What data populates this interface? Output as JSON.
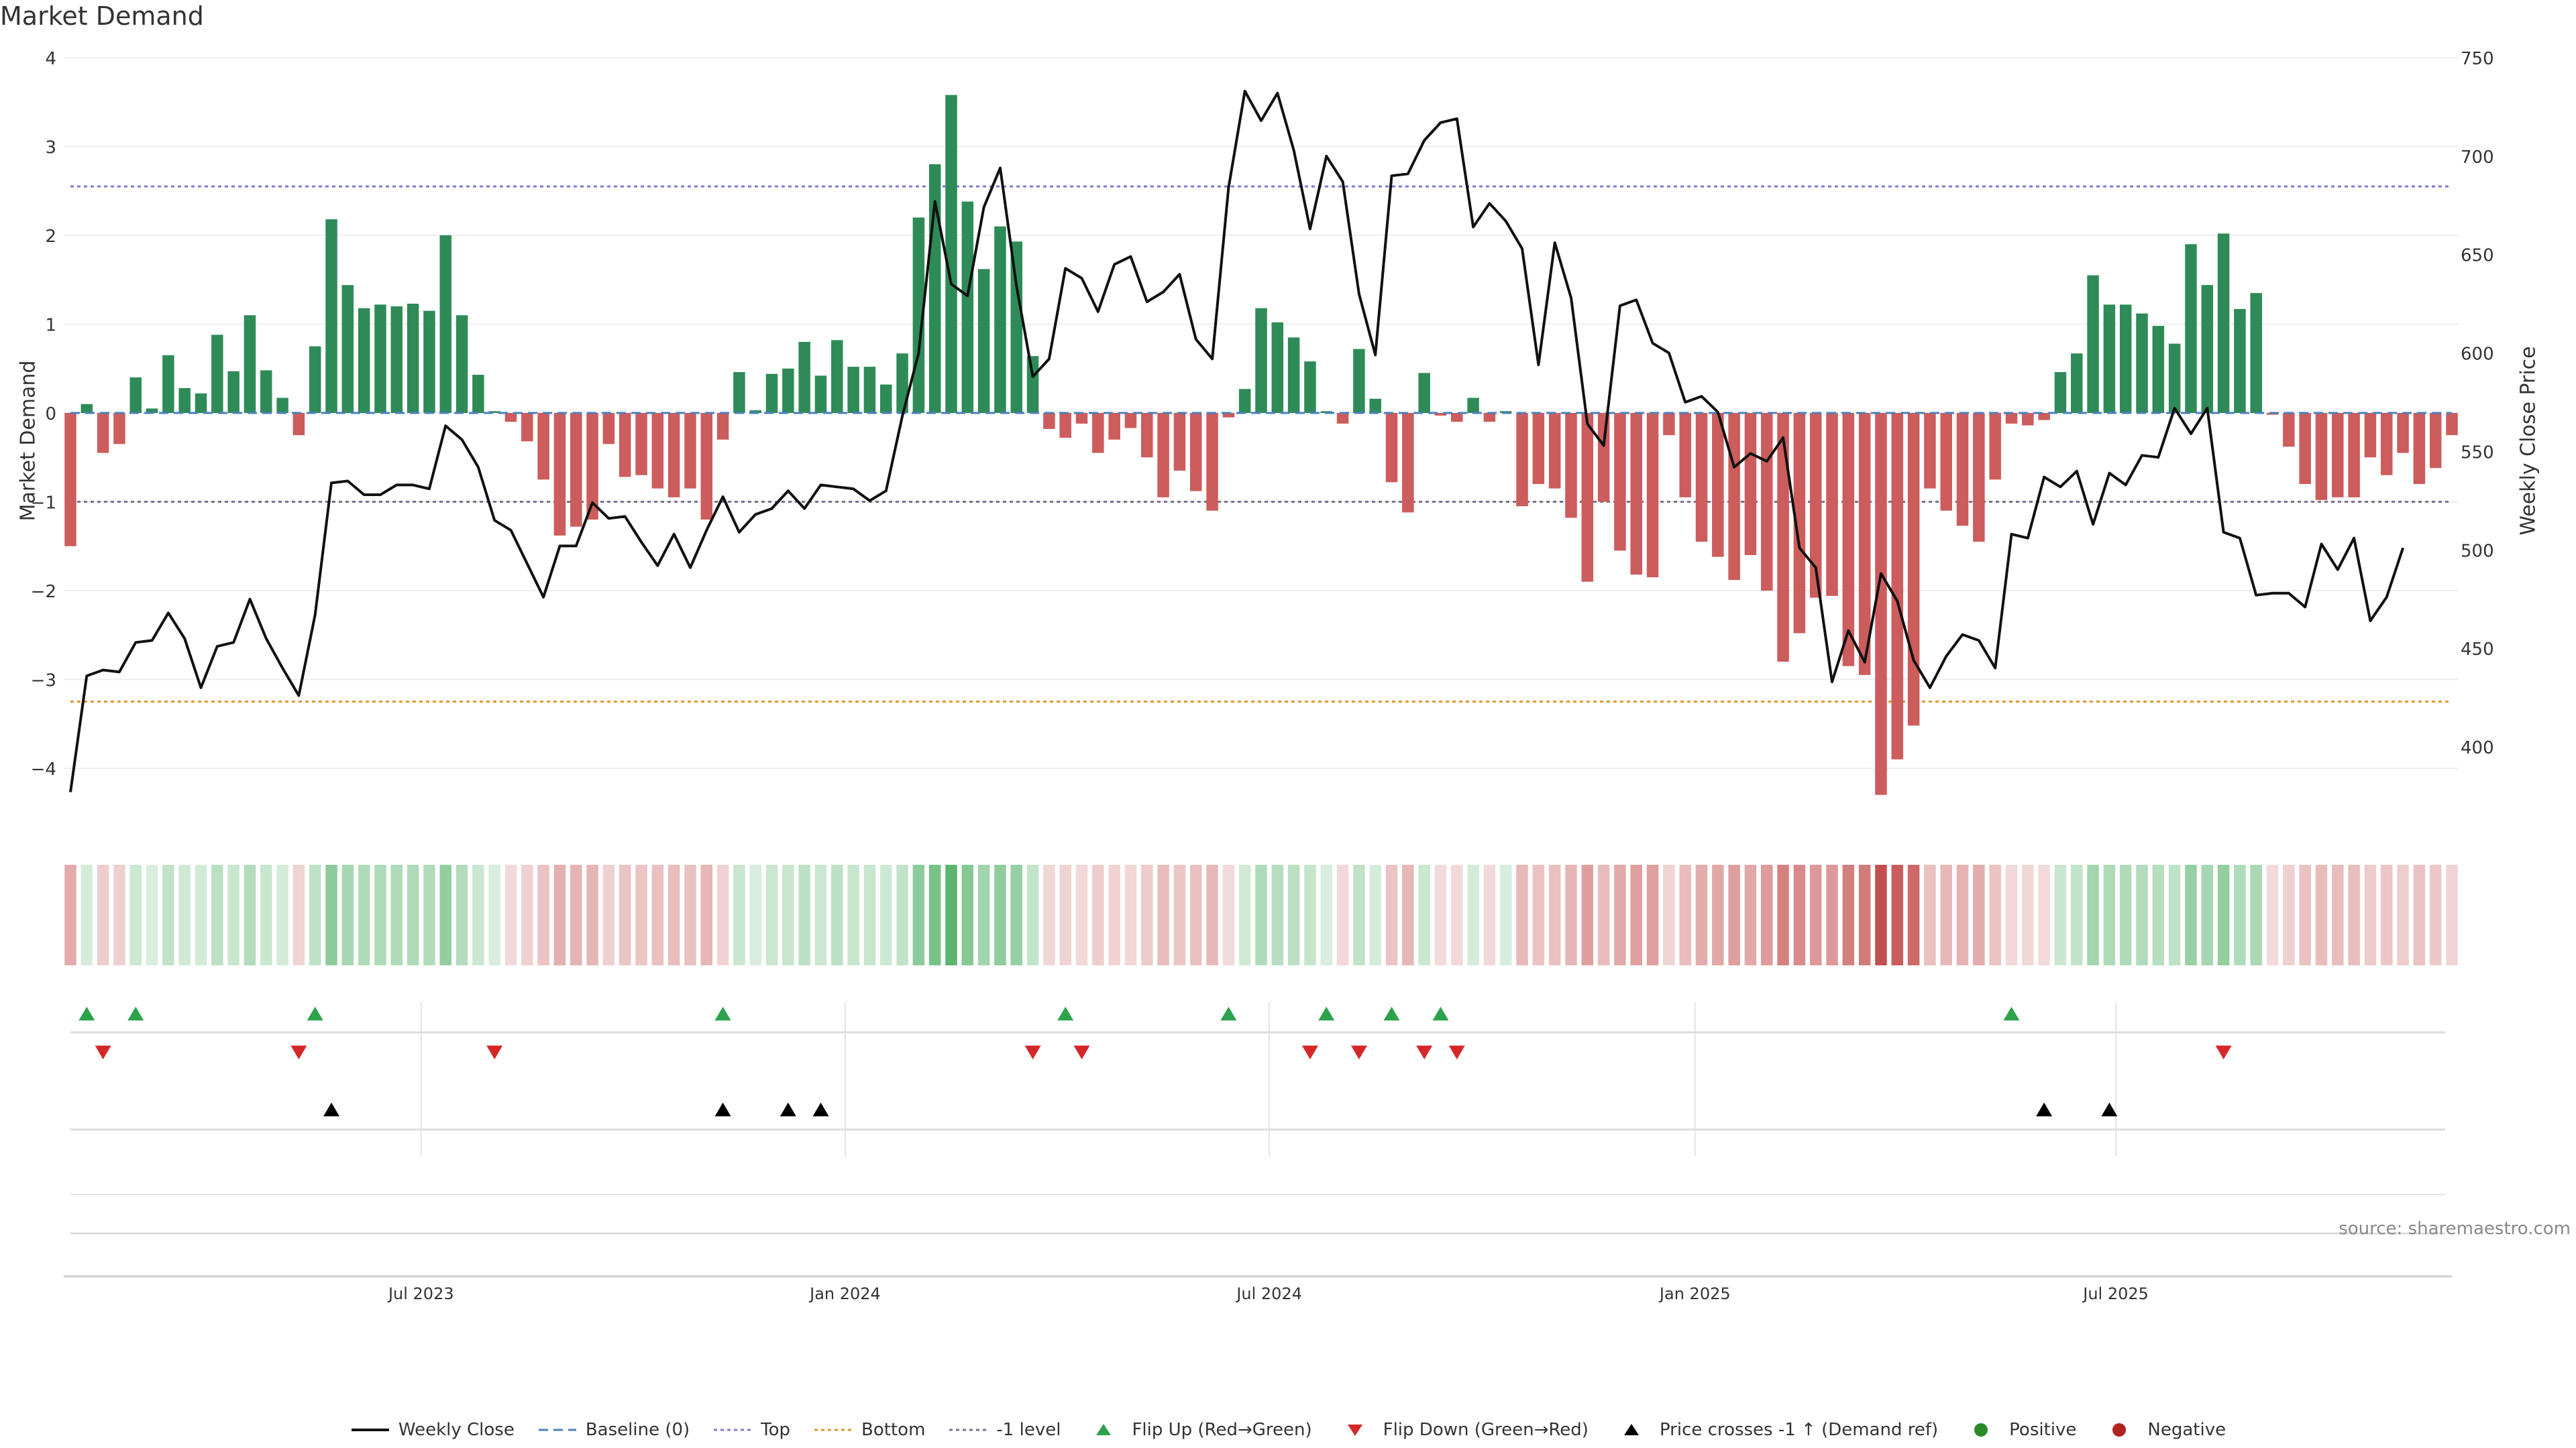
{
  "chart_data": {
    "type": "bar",
    "title": "Market Demand",
    "ylabel": "Market Demand",
    "y2label": "Weekly Close Price",
    "ylim": [
      -4.5,
      4.0
    ],
    "y2lim": [
      372,
      750
    ],
    "yticks": [
      4,
      3,
      2,
      1,
      0,
      -1,
      -2,
      -3,
      -4
    ],
    "y2ticks": [
      750,
      700,
      650,
      600,
      550,
      500,
      450,
      400
    ],
    "xticks": [
      "Jul 2023",
      "Jan 2024",
      "Jul 2024",
      "Jan 2025",
      "Jul 2025"
    ],
    "source": "source: sharemaestro.com",
    "levels": {
      "top": 2.55,
      "bottom": -3.25,
      "minus_one": -1.0,
      "baseline": 0
    },
    "demand": [
      -1.5,
      0.1,
      -0.45,
      -0.35,
      0.4,
      0.05,
      0.65,
      0.28,
      0.22,
      0.88,
      0.47,
      1.1,
      0.48,
      0.17,
      -0.25,
      0.75,
      2.18,
      1.44,
      1.18,
      1.22,
      1.2,
      1.23,
      1.15,
      2.0,
      1.1,
      0.43,
      0.02,
      -0.1,
      -0.32,
      -0.75,
      -1.38,
      -1.28,
      -1.2,
      -0.35,
      -0.72,
      -0.7,
      -0.85,
      -0.95,
      -0.85,
      -1.2,
      -0.3,
      0.46,
      0.03,
      0.44,
      0.5,
      0.8,
      0.42,
      0.82,
      0.52,
      0.52,
      0.32,
      0.67,
      2.2,
      2.8,
      3.58,
      2.38,
      1.62,
      2.1,
      1.93,
      0.64,
      -0.18,
      -0.28,
      -0.12,
      -0.45,
      -0.3,
      -0.17,
      -0.5,
      -0.95,
      -0.65,
      -0.88,
      -1.1,
      -0.05,
      0.27,
      1.18,
      1.02,
      0.85,
      0.58,
      0.02,
      -0.12,
      0.72,
      0.16,
      -0.78,
      -1.12,
      0.45,
      -0.03,
      -0.1,
      0.17,
      -0.1,
      0.02,
      -1.05,
      -0.8,
      -0.85,
      -1.18,
      -1.9,
      -1.0,
      -1.55,
      -1.82,
      -1.85,
      -0.25,
      -0.95,
      -1.45,
      -1.62,
      -1.88,
      -1.6,
      -2.0,
      -2.8,
      -2.48,
      -2.08,
      -2.06,
      -2.85,
      -2.95,
      -4.3,
      -3.9,
      -3.52,
      -0.85,
      -1.1,
      -1.27,
      -1.45,
      -0.75,
      -0.12,
      -0.14,
      -0.08,
      0.46,
      0.67,
      1.55,
      1.22,
      1.22,
      1.12,
      0.98,
      0.78,
      1.9,
      1.44,
      2.02,
      1.17,
      1.35,
      -0.02,
      -0.38,
      -0.8,
      -0.98,
      -0.95,
      -0.95,
      -0.5,
      -0.7,
      -0.45,
      -0.8,
      -0.62,
      -0.25
    ],
    "price": [
      377,
      436,
      439,
      438,
      453,
      454,
      468,
      455,
      430,
      451,
      453,
      475,
      455,
      440,
      426,
      467,
      534,
      535,
      528,
      528,
      533,
      533,
      531,
      563,
      556,
      542,
      515,
      510,
      493,
      476,
      502,
      502,
      524,
      516,
      517,
      504,
      492,
      508,
      491,
      510,
      527,
      509,
      518,
      521,
      530,
      521,
      533,
      532,
      531,
      525,
      530,
      568,
      600,
      677,
      635,
      629,
      674,
      694,
      634,
      588,
      597,
      643,
      638,
      621,
      645,
      649,
      626,
      631,
      640,
      607,
      597,
      684,
      733,
      718,
      732,
      703,
      663,
      700,
      687,
      630,
      599,
      690,
      691,
      708,
      717,
      719,
      664,
      676,
      667,
      653,
      594,
      656,
      628,
      564,
      553,
      624,
      627,
      605,
      600,
      575,
      578,
      570,
      542,
      549,
      545,
      557,
      501,
      491,
      433,
      459,
      443,
      488,
      474,
      444,
      430,
      446,
      457,
      454,
      440,
      508,
      506,
      537,
      532,
      540,
      513,
      539,
      533,
      548,
      547,
      572,
      559,
      572,
      509,
      506,
      477,
      478,
      478,
      471,
      503,
      490,
      506,
      464,
      476,
      501
    ],
    "flip_up": [
      1,
      4,
      15,
      40,
      61,
      71,
      77,
      81,
      84,
      119
    ],
    "flip_down": [
      2,
      14,
      26,
      59,
      62,
      76,
      79,
      83,
      85,
      132
    ],
    "price_cross": [
      16,
      40,
      44,
      46,
      121,
      125
    ],
    "legend": [
      {
        "label": "Weekly Close",
        "marker": "line",
        "color": "#111111"
      },
      {
        "label": "Baseline (0)",
        "marker": "dash",
        "color": "#4a7fc1"
      },
      {
        "label": "Top",
        "marker": "dot",
        "color": "#7b7bd6"
      },
      {
        "label": "Bottom",
        "marker": "dot",
        "color": "#e0952a"
      },
      {
        "label": "-1 level",
        "marker": "dot",
        "color": "#7a7090"
      },
      {
        "label": "Flip Up (Red→Green)",
        "marker": "tri-up",
        "color": "#2ca24c"
      },
      {
        "label": "Flip Down (Green→Red)",
        "marker": "tri-down",
        "color": "#d62728"
      },
      {
        "label": "Price crosses -1 ↑ (Demand ref)",
        "marker": "tri-up",
        "color": "#000000"
      },
      {
        "label": "Positive",
        "marker": "circle",
        "color": "#2a8a2a"
      },
      {
        "label": "Negative",
        "marker": "circle",
        "color": "#b22222"
      }
    ],
    "colors": {
      "positive": "#2e8b57",
      "negative": "#cd5c5c",
      "price": "#111111"
    }
  }
}
